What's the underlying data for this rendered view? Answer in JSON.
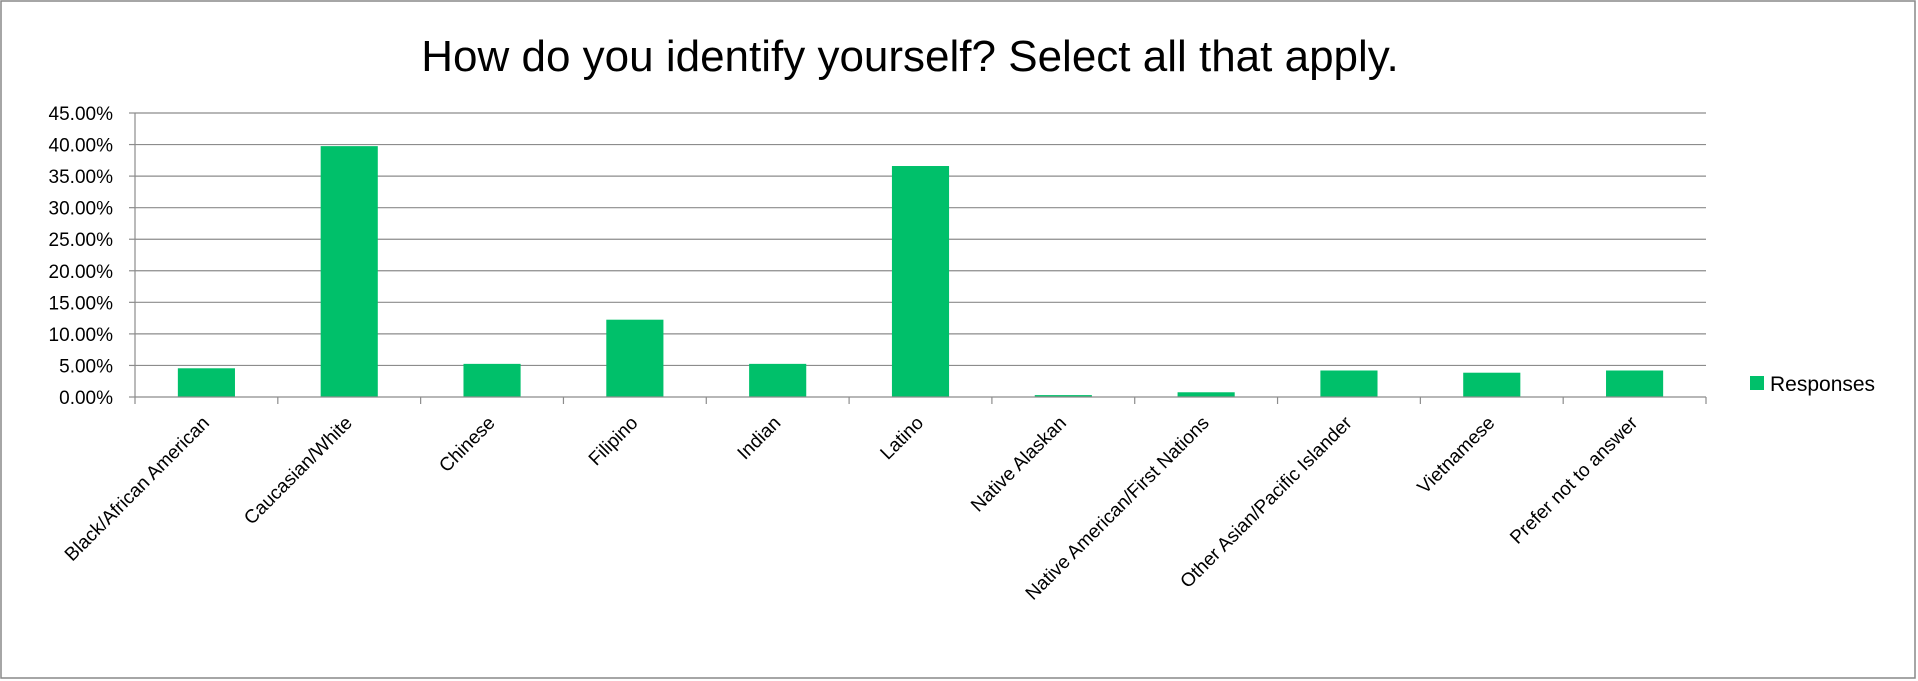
{
  "chart_data": {
    "type": "bar",
    "title": "How do you identify yourself? Select all that apply.",
    "xlabel": "",
    "ylabel": "",
    "categories": [
      "Black/African American",
      "Caucasian/White",
      "Chinese",
      "Filipino",
      "Indian",
      "Latino",
      "Native Alaskan",
      "Native American/First Nations",
      "Other Asian/Pacific Islander",
      "Vietnamese",
      "Prefer not to answer"
    ],
    "series": [
      {
        "name": "Responses",
        "color": "#00c06a",
        "values": [
          0.0455,
          0.3975,
          0.0525,
          0.1225,
          0.0525,
          0.366,
          0.003,
          0.0075,
          0.042,
          0.0385,
          0.042
        ]
      }
    ],
    "ylim": [
      0,
      0.45
    ],
    "yticks": [
      0,
      0.05,
      0.1,
      0.15,
      0.2,
      0.25,
      0.3,
      0.35,
      0.4,
      0.45
    ],
    "ytick_labels": [
      "0.00%",
      "5.00%",
      "10.00%",
      "15.00%",
      "20.00%",
      "25.00%",
      "30.00%",
      "35.00%",
      "40.00%",
      "45.00%"
    ],
    "grid": true,
    "legend_position": "right"
  }
}
